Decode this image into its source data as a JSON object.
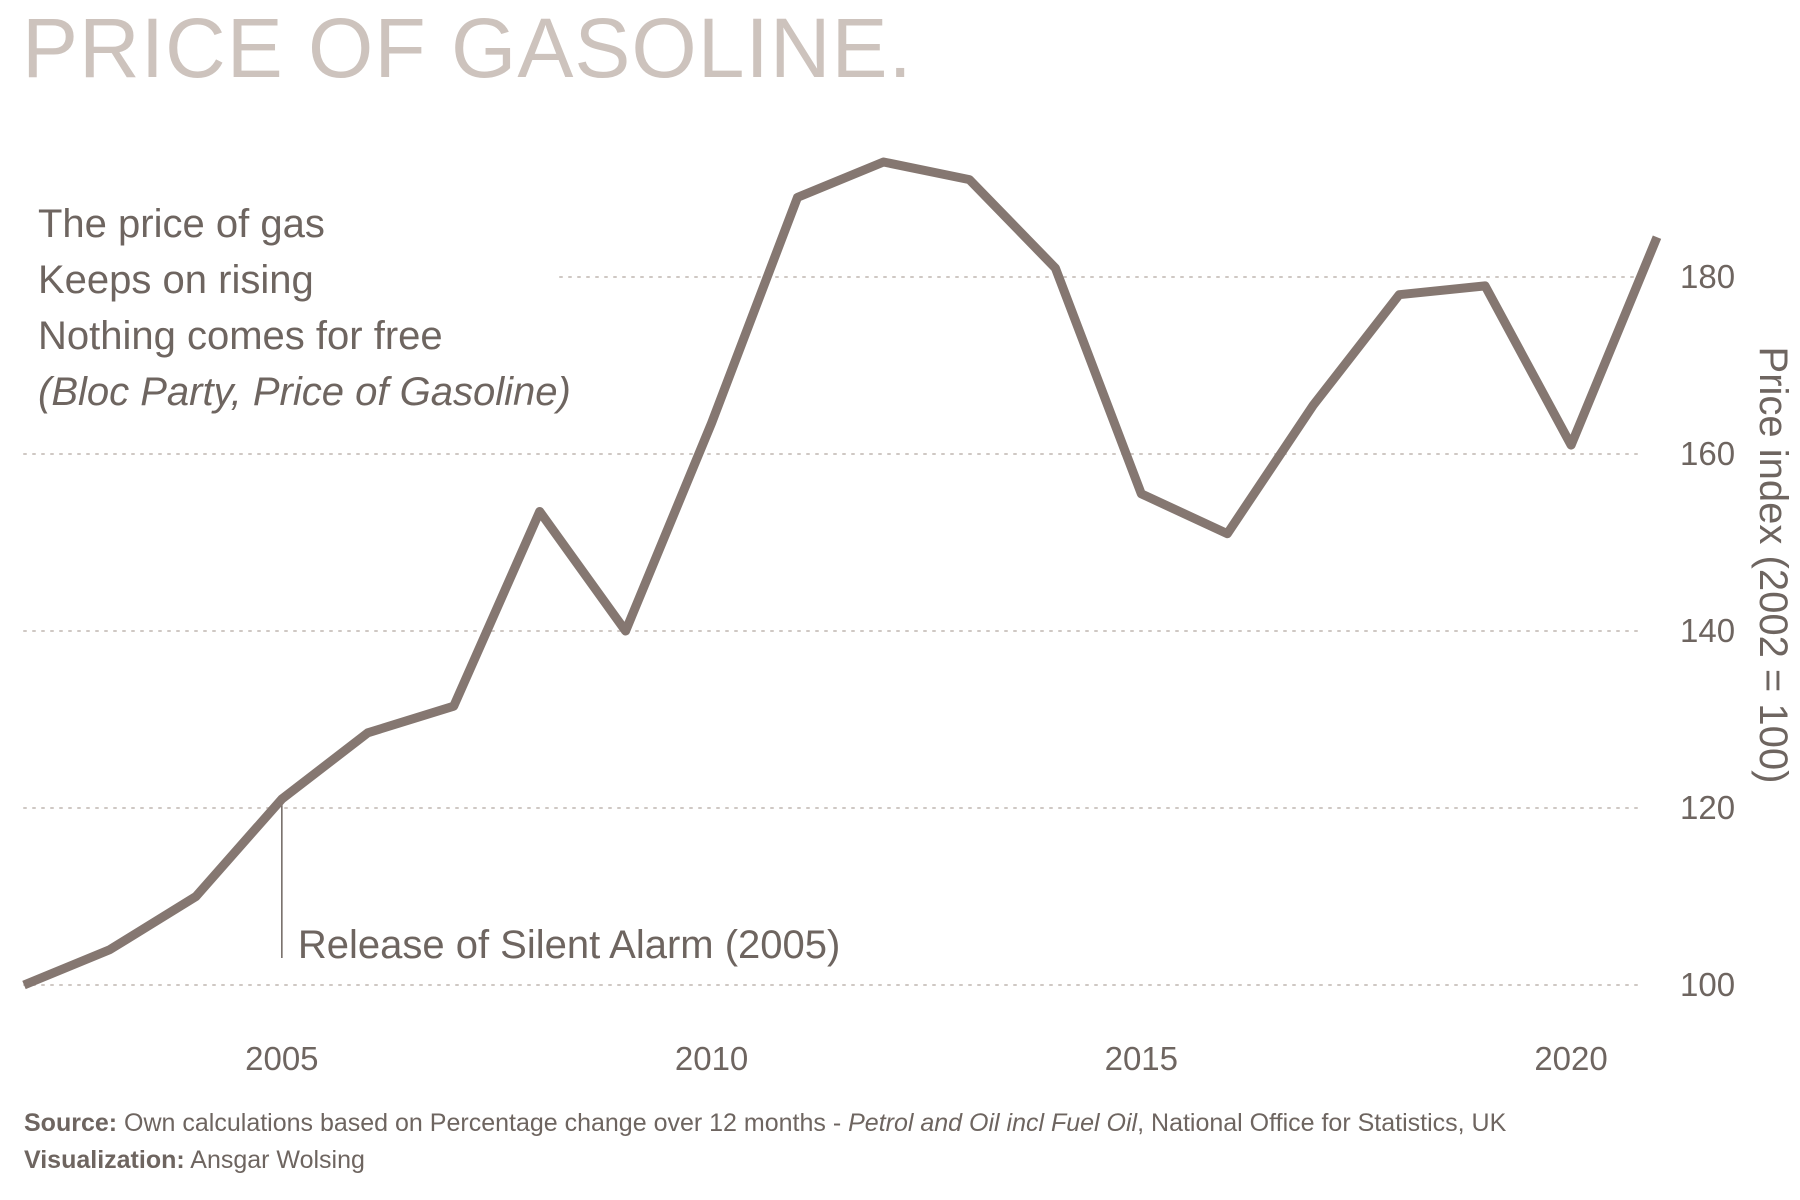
{
  "title": "PRICE OF GASOLINE.",
  "lyrics": {
    "line1": "The price of gas",
    "line2": "Keeps on rising",
    "line3": "Nothing comes for free",
    "citation": "(Bloc Party, Price of Gasoline)"
  },
  "footer": {
    "source_label": "Source:",
    "source_text_1": "Own calculations based on Percentage change over 12 months - ",
    "source_text_italic": "Petrol and Oil incl Fuel Oil",
    "source_text_2": ", National Office for Statistics, UK",
    "viz_label": "Visualization:",
    "viz_text": "Ansgar Wolsing"
  },
  "colors": {
    "line": "#857771",
    "title": "#cdc3bd",
    "text": "#6e6560",
    "grid": "#cfc8c4"
  },
  "chart_data": {
    "type": "line",
    "title": "PRICE OF GASOLINE.",
    "xlabel": "",
    "ylabel": "Price index (2002 = 100)",
    "xlim": [
      2002,
      2021
    ],
    "ylim": [
      100,
      190
    ],
    "x_ticks": [
      2005,
      2010,
      2015,
      2020
    ],
    "y_ticks": [
      100,
      120,
      140,
      160,
      180
    ],
    "y_axis_side": "right",
    "grid": "horizontal-dotted",
    "series": [
      {
        "values": [
          {
            "x": 2002,
            "y": 100
          },
          {
            "x": 2003,
            "y": 104
          },
          {
            "x": 2004,
            "y": 110
          },
          {
            "x": 2005,
            "y": 121
          },
          {
            "x": 2006,
            "y": 128.5
          },
          {
            "x": 2007,
            "y": 131.5
          },
          {
            "x": 2008,
            "y": 153.5
          },
          {
            "x": 2009,
            "y": 140
          },
          {
            "x": 2010,
            "y": 163.5
          },
          {
            "x": 2011,
            "y": 189
          },
          {
            "x": 2012,
            "y": 193
          },
          {
            "x": 2013,
            "y": 191
          },
          {
            "x": 2014,
            "y": 181
          },
          {
            "x": 2015,
            "y": 155.5
          },
          {
            "x": 2016,
            "y": 151
          },
          {
            "x": 2017,
            "y": 165.5
          },
          {
            "x": 2018,
            "y": 178
          },
          {
            "x": 2019,
            "y": 179
          },
          {
            "x": 2020,
            "y": 161
          },
          {
            "x": 2021,
            "y": 184.5
          }
        ]
      }
    ],
    "annotations": [
      {
        "x": 2005,
        "text": "Release of Silent Alarm (2005)"
      }
    ]
  }
}
